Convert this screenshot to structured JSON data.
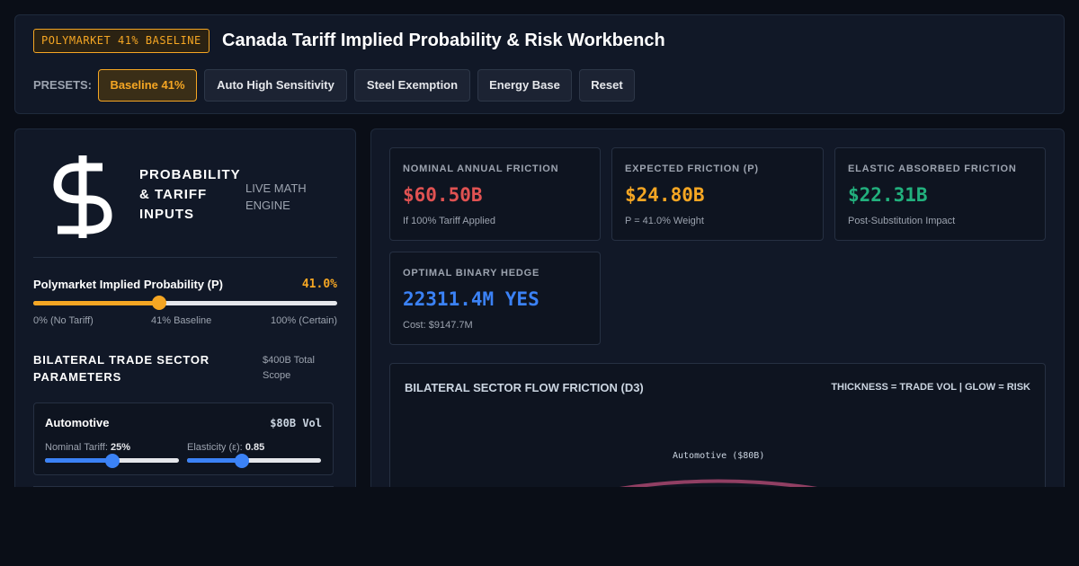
{
  "header": {
    "badge": "POLYMARKET 41% BASELINE",
    "title": "Canada Tariff Implied Probability & Risk Workbench",
    "presets_label": "PRESETS:",
    "presets": [
      "Baseline 41%",
      "Auto High Sensitivity",
      "Steel Exemption",
      "Energy Base",
      "Reset"
    ]
  },
  "inputs": {
    "heading": "PROBABILITY & TARIFF INPUTS",
    "engine": "LIVE MATH ENGINE",
    "probability": {
      "label": "Polymarket Implied Probability (P)",
      "value": "41.0%",
      "scale": [
        "0% (No Tariff)",
        "41% Baseline",
        "100% (Certain)"
      ]
    },
    "sectors_title": "BILATERAL TRADE SECTOR PARAMETERS",
    "sectors_scope": "$400B Total Scope",
    "sector": {
      "name": "Automotive",
      "volume": "$80B Vol",
      "tariff_label": "Nominal Tariff:",
      "tariff_value": "25%",
      "elasticity_label": "Elasticity (ε):",
      "elasticity_value": "0.85"
    }
  },
  "results": {
    "cards": [
      {
        "label": "NOMINAL ANNUAL FRICTION",
        "value": "$60.50B",
        "note": "If 100% Tariff Applied"
      },
      {
        "label": "EXPECTED FRICTION (P)",
        "value": "$24.80B",
        "note": "P = 41.0% Weight"
      },
      {
        "label": "ELASTIC ABSORBED FRICTION",
        "value": "$22.31B",
        "note": "Post-Substitution Impact"
      },
      {
        "label": "OPTIMAL BINARY HEDGE",
        "value": "22311.4M YES",
        "note": "Cost: $9147.7M"
      }
    ],
    "flow": {
      "title": "BILATERAL SECTOR FLOW FRICTION (D3)",
      "legend": "THICKNESS = TRADE VOL | GLOW = RISK",
      "node_label": "Automotive ($80B)"
    }
  }
}
